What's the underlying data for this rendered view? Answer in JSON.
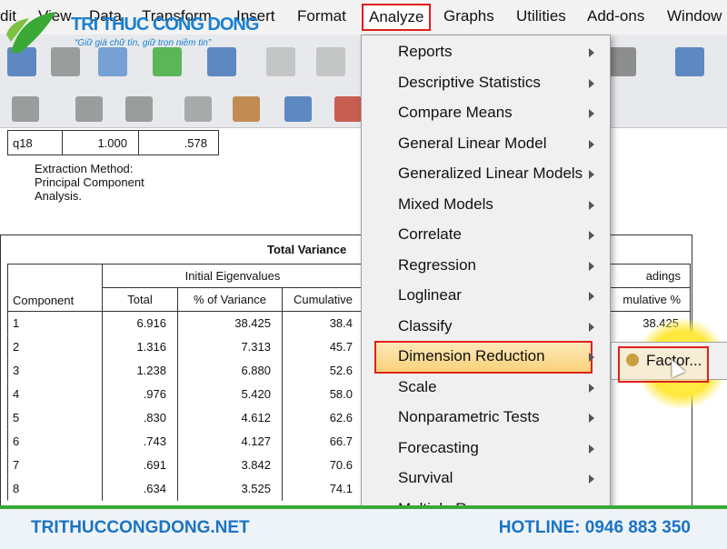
{
  "menubar": [
    "dit",
    "View",
    "Data",
    "Transform",
    "Insert",
    "Format",
    "Analyze",
    "Graphs",
    "Utilities",
    "Add-ons",
    "Window"
  ],
  "logo": {
    "name": "TRI THUC CONG DONG",
    "tagline": "“Giữ giá chữ tín, giữ trọn niềm tin”"
  },
  "small_table": [
    "q18",
    "1.000",
    ".578"
  ],
  "note": [
    "Extraction Method:",
    "Principal Component",
    "Analysis."
  ],
  "total_variance": {
    "title": "Total Variance",
    "group": "Initial Eigenvalues",
    "columns": [
      "Component",
      "Total",
      "% of Variance",
      "Cumulative"
    ],
    "rows": [
      [
        "1",
        "6.916",
        "38.425",
        "38.4"
      ],
      [
        "2",
        "1.316",
        "7.313",
        "45.7"
      ],
      [
        "3",
        "1.238",
        "6.880",
        "52.6"
      ],
      [
        "4",
        ".976",
        "5.420",
        "58.0"
      ],
      [
        "5",
        ".830",
        "4.612",
        "62.6"
      ],
      [
        "6",
        ".743",
        "4.127",
        "66.7"
      ],
      [
        "7",
        ".691",
        "3.842",
        "70.6"
      ],
      [
        "8",
        ".634",
        "3.525",
        "74.1"
      ]
    ],
    "right_group": "adings",
    "right_column": "mulative %",
    "right_value": "38.425"
  },
  "menu": [
    "Reports",
    "Descriptive Statistics",
    "Compare Means",
    "General Linear Model",
    "Generalized Linear Models",
    "Mixed Models",
    "Correlate",
    "Regression",
    "Loglinear",
    "Classify",
    "Dimension Reduction",
    "Scale",
    "Nonparametric Tests",
    "Forecasting",
    "Survival",
    "Multiple Response"
  ],
  "submenu": [
    "Factor..."
  ],
  "footer": {
    "site": "TRITHUCCONGDONG.NET",
    "hotline": "HOTLINE: 0946 883 350"
  }
}
